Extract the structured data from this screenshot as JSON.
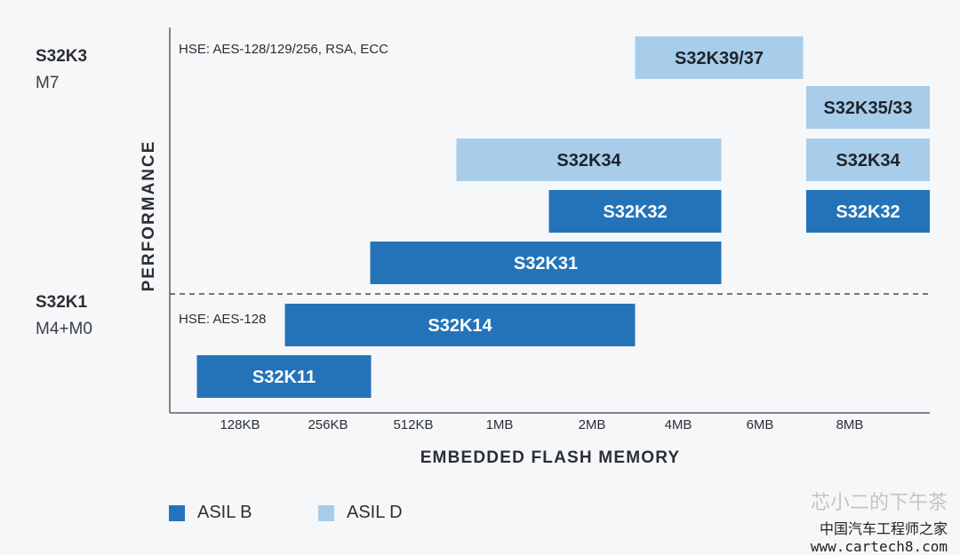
{
  "chart_data": {
    "type": "bar",
    "title": "",
    "xlabel": "EMBEDDED FLASH MEMORY",
    "ylabel": "PERFORMANCE",
    "x_ticks": [
      "128KB",
      "256KB",
      "512KB",
      "1MB",
      "2MB",
      "4MB",
      "6MB",
      "8MB"
    ],
    "families": [
      {
        "name": "S32K3",
        "core": "M7",
        "hse": "HSE: AES-128/129/256, RSA, ECC"
      },
      {
        "name": "S32K1",
        "core": "M4+M0",
        "hse": "HSE: AES-128"
      }
    ],
    "series": [
      {
        "name": "ASIL B",
        "color": "#2473b8"
      },
      {
        "name": "ASIL D",
        "color": "#a7cdeb"
      }
    ],
    "bars": [
      {
        "label": "S32K39/37",
        "family": "S32K3",
        "asil": "ASIL D",
        "flash_from": "4MB",
        "flash_to": "6MB",
        "level": 1
      },
      {
        "label": "S32K35/33",
        "family": "S32K3",
        "asil": "ASIL D",
        "flash_from": "8MB",
        "flash_to": "8MB",
        "level": 2
      },
      {
        "label": "S32K34",
        "family": "S32K3",
        "asil": "ASIL D",
        "flash_from": "1MB",
        "flash_to": "4MB",
        "level": 3
      },
      {
        "label": "S32K34",
        "family": "S32K3",
        "asil": "ASIL D",
        "flash_from": "8MB",
        "flash_to": "8MB",
        "level": 3
      },
      {
        "label": "S32K32",
        "family": "S32K3",
        "asil": "ASIL B",
        "flash_from": "2MB",
        "flash_to": "4MB",
        "level": 4
      },
      {
        "label": "S32K32",
        "family": "S32K3",
        "asil": "ASIL B",
        "flash_from": "8MB",
        "flash_to": "8MB",
        "level": 4
      },
      {
        "label": "S32K31",
        "family": "S32K3",
        "asil": "ASIL B",
        "flash_from": "512KB",
        "flash_to": "4MB",
        "level": 5
      },
      {
        "label": "S32K14",
        "family": "S32K1",
        "asil": "ASIL B",
        "flash_from": "256KB",
        "flash_to": "2MB",
        "level": 6
      },
      {
        "label": "S32K11",
        "family": "S32K1",
        "asil": "ASIL B",
        "flash_from": "128KB",
        "flash_to": "256KB",
        "level": 7
      }
    ],
    "legend": "bottom-left",
    "grid": false
  },
  "watermark": {
    "line1": "芯小二的下午茶",
    "line2": "中国汽车工程师之家",
    "line3": "www.cartech8.com"
  }
}
